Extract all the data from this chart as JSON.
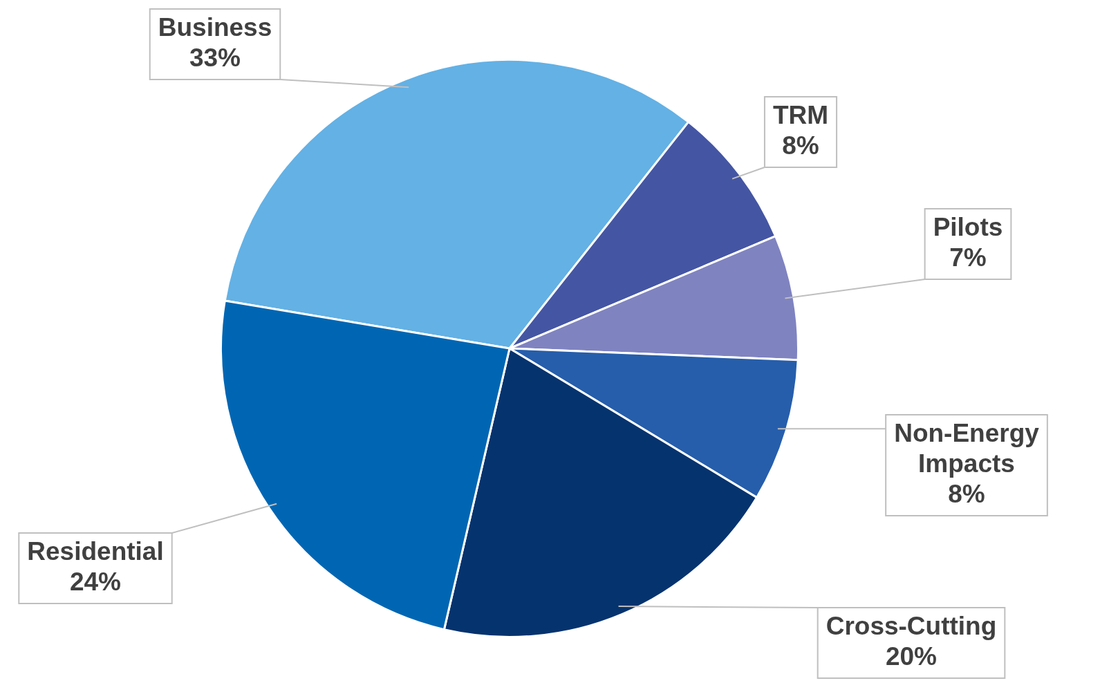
{
  "chart_data": {
    "type": "pie",
    "categories": [
      "Business",
      "TRM",
      "Pilots",
      "Non-Energy Impacts",
      "Cross-Cutting",
      "Residential"
    ],
    "values": [
      33,
      8,
      7,
      8,
      20,
      24
    ],
    "value_labels": [
      "33%",
      "8%",
      "7%",
      "8%",
      "20%",
      "24%"
    ],
    "colors": [
      "#63b1e5",
      "#4455a3",
      "#7f83c0",
      "#265eab",
      "#05336e",
      "#0066b3"
    ],
    "legend": false
  }
}
